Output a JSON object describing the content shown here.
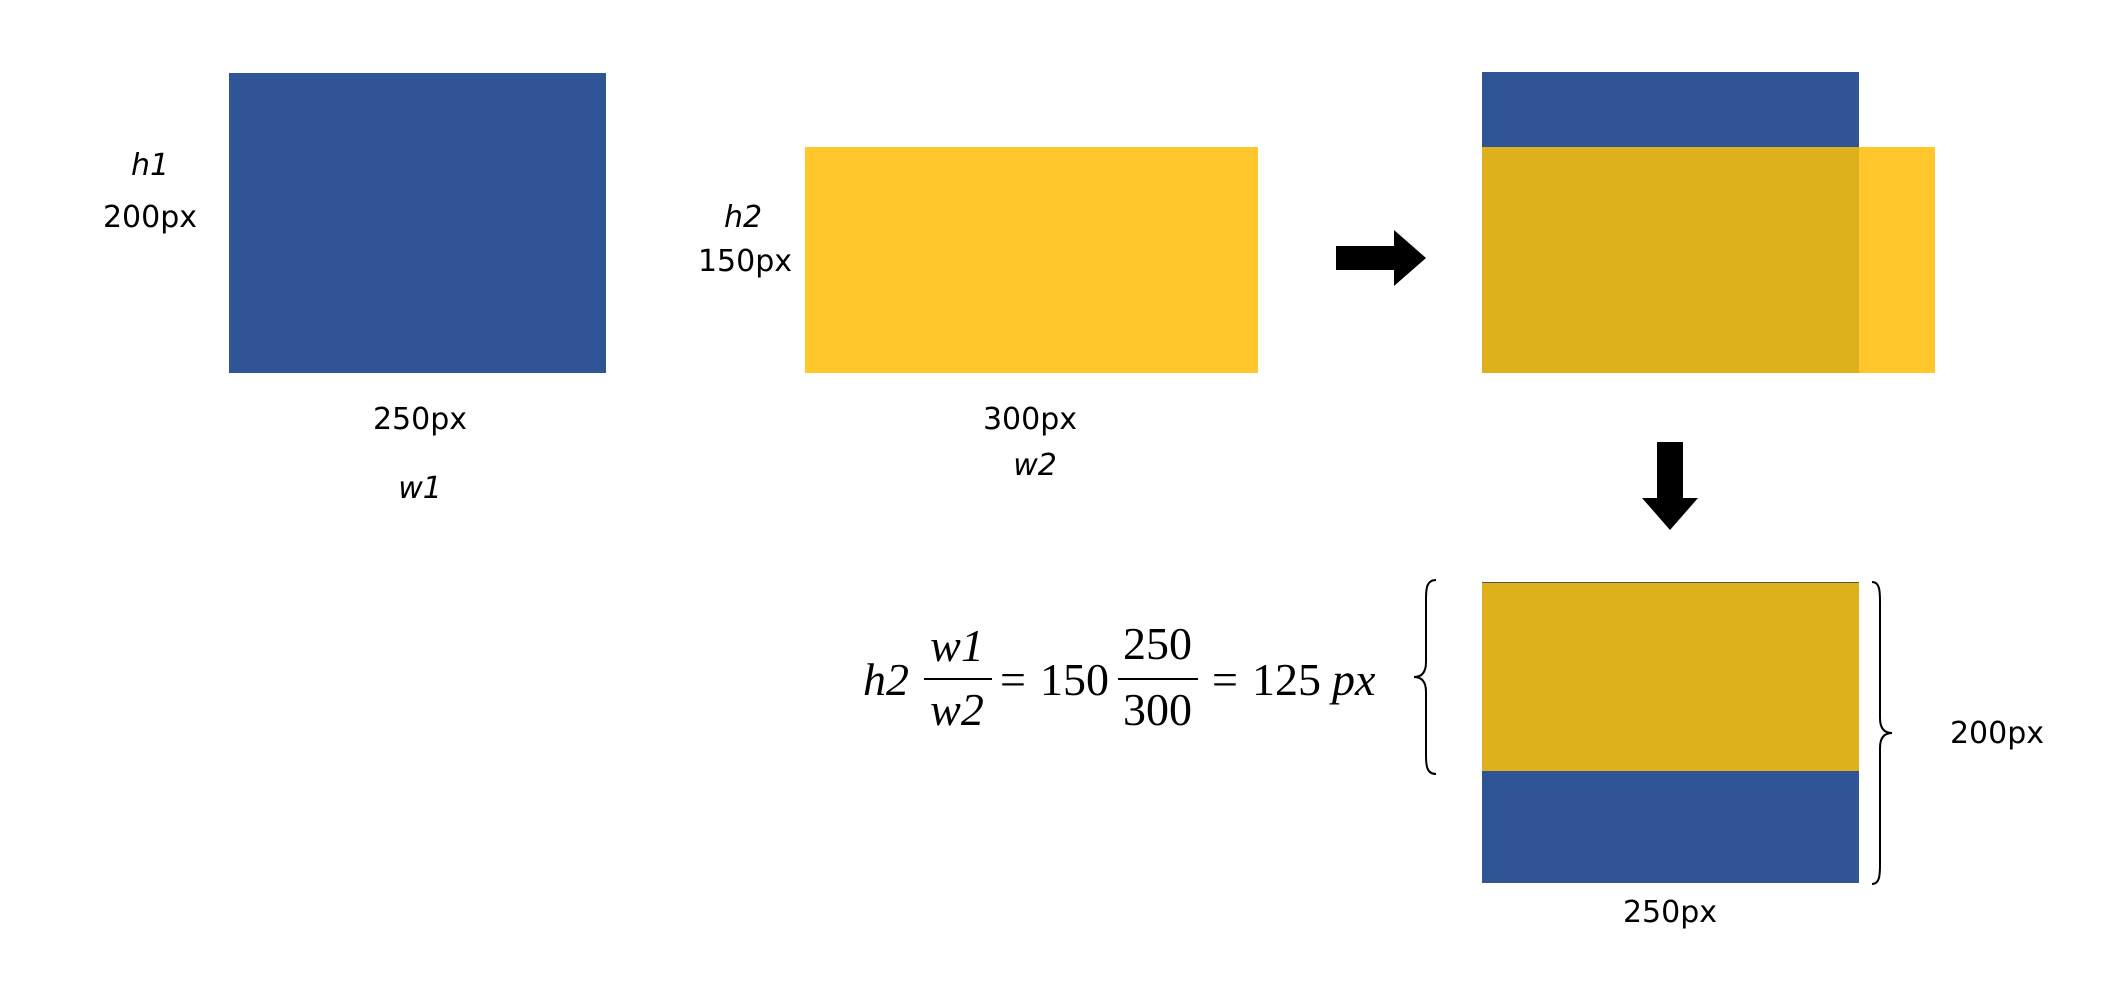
{
  "colors": {
    "blue": "#2F5597",
    "yellow": "#FFC72C",
    "overlap": "#DDB01C",
    "arrow": "#000000"
  },
  "icons": {
    "right_arrow": "arrow-right-icon",
    "down_arrow": "arrow-down-icon"
  },
  "rect1": {
    "h_var": "h1",
    "h_value": "200px",
    "w_value": "250px",
    "w_var": "w1"
  },
  "rect2": {
    "h_var": "h2",
    "h_value": "150px",
    "w_value": "300px",
    "w_var": "w2"
  },
  "formula": {
    "lhs_var": "h2",
    "frac1_num": "w1",
    "frac1_den": "w2",
    "eq1": "=",
    "coef": "150",
    "frac2_num": "250",
    "frac2_den": "300",
    "eq2": "=",
    "result": "125",
    "unit": "px"
  },
  "result_box": {
    "height_label": "200px",
    "width_label": "250px"
  }
}
